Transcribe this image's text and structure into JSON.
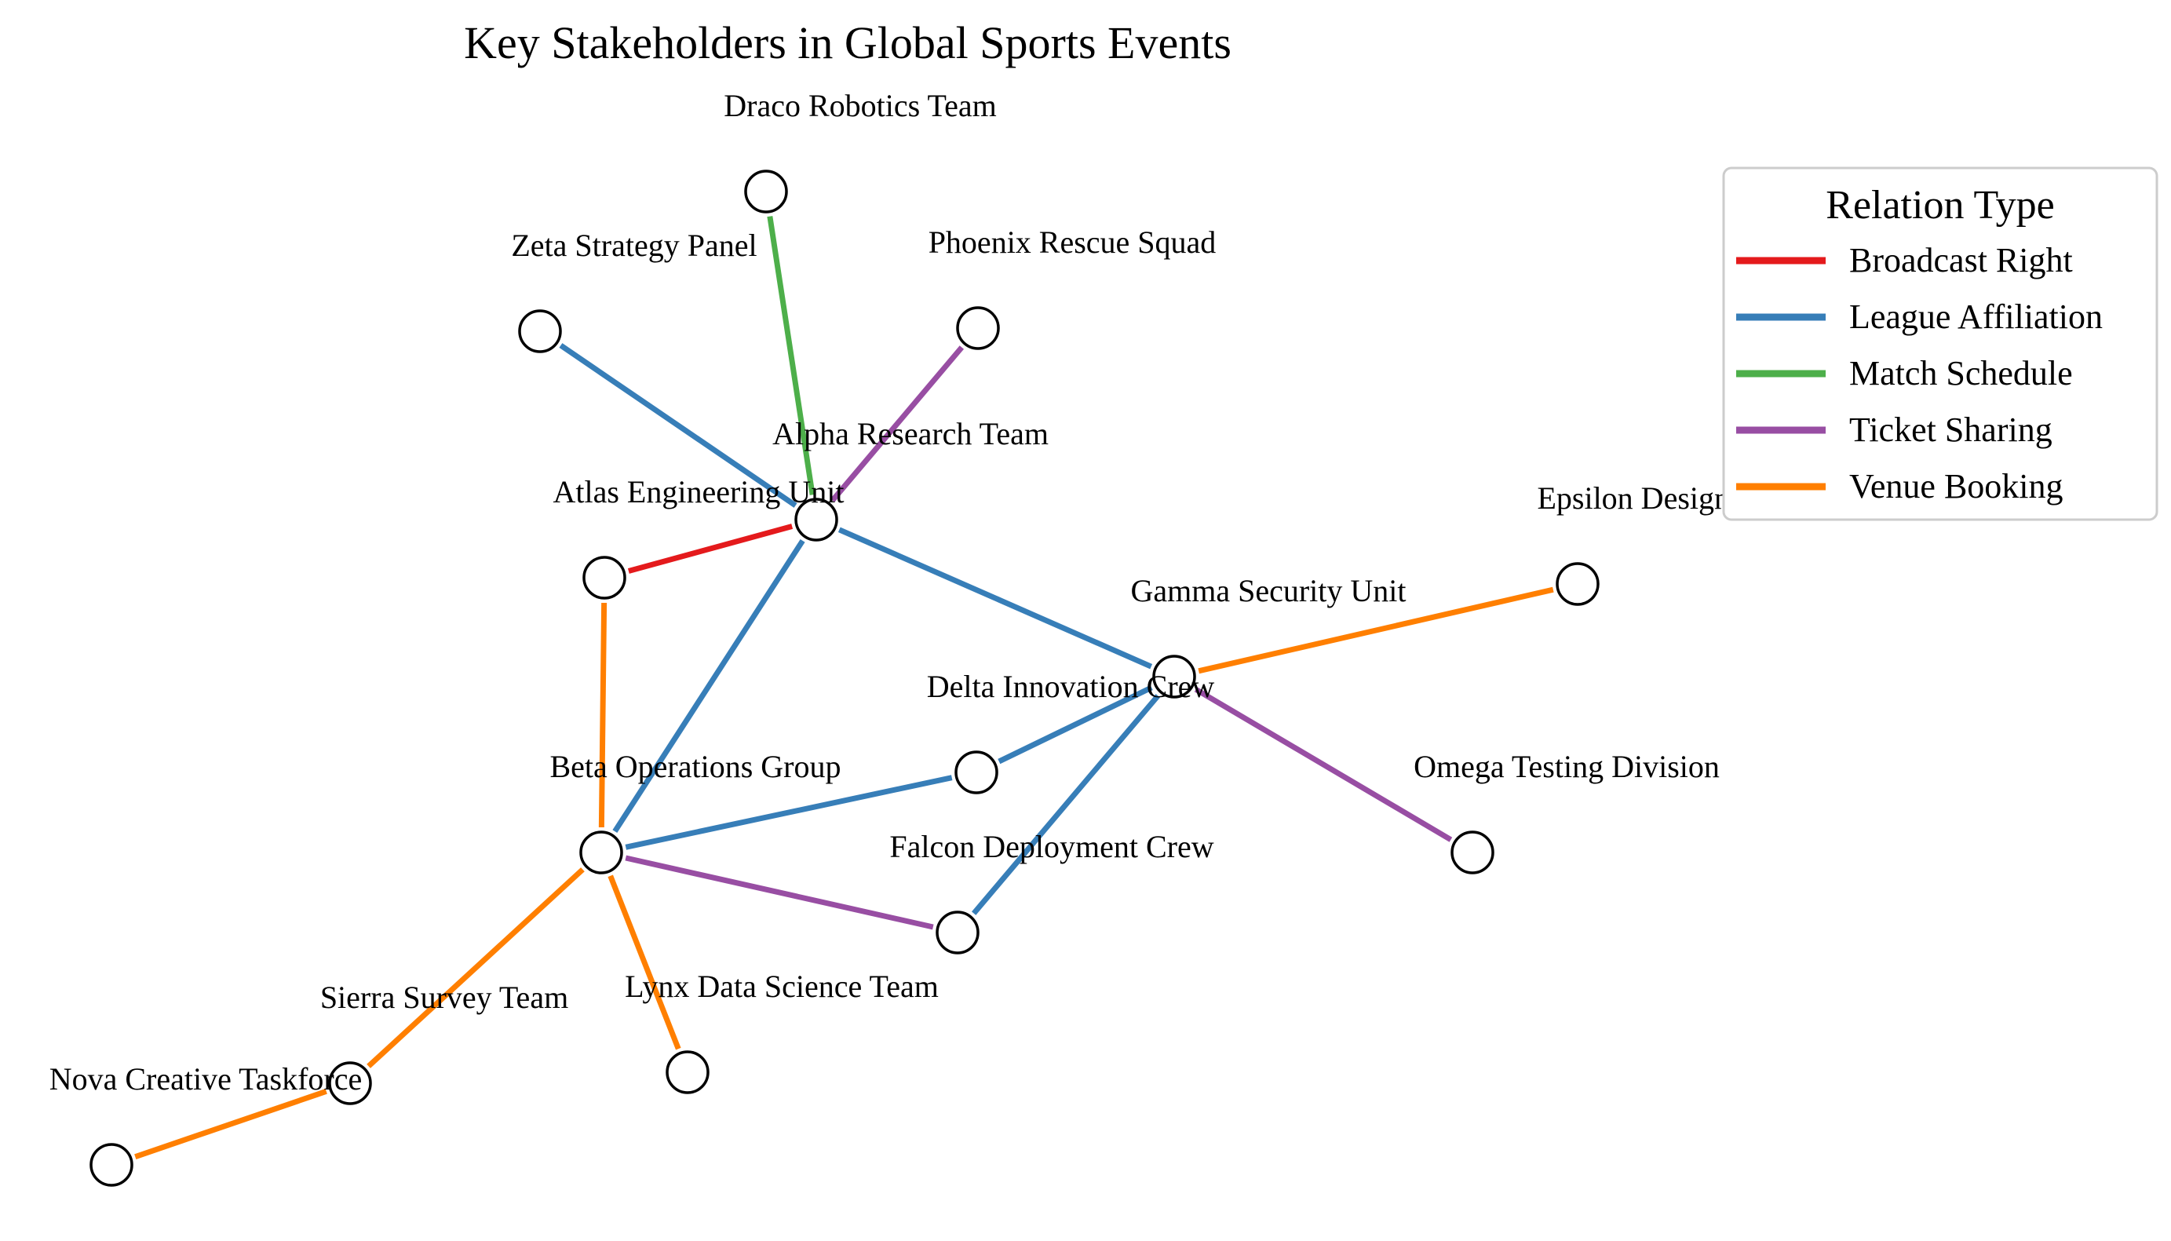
{
  "title": "Key Stakeholders in Global Sports Events",
  "legend": {
    "title": "Relation Type",
    "placement": "top-right",
    "items": [
      {
        "label": "Broadcast Right",
        "color": "#e41a1c"
      },
      {
        "label": "League Affiliation",
        "color": "#377eb8"
      },
      {
        "label": "Match Schedule",
        "color": "#4daf4a"
      },
      {
        "label": "Ticket Sharing",
        "color": "#984ea3"
      },
      {
        "label": "Venue Booking",
        "color": "#ff7f00"
      }
    ]
  },
  "nodes": [
    {
      "id": "alpha",
      "label": "Alpha Research Team"
    },
    {
      "id": "atlas",
      "label": "Atlas Engineering Unit"
    },
    {
      "id": "beta",
      "label": "Beta Operations Group"
    },
    {
      "id": "delta",
      "label": "Delta Innovation Crew"
    },
    {
      "id": "draco",
      "label": "Draco Robotics Team"
    },
    {
      "id": "epsilon",
      "label": "Epsilon Design Team"
    },
    {
      "id": "falcon",
      "label": "Falcon Deployment Crew"
    },
    {
      "id": "gamma",
      "label": "Gamma Security Unit"
    },
    {
      "id": "lynx",
      "label": "Lynx Data Science Team"
    },
    {
      "id": "nova",
      "label": "Nova Creative Taskforce"
    },
    {
      "id": "omega",
      "label": "Omega Testing Division"
    },
    {
      "id": "phoenix",
      "label": "Phoenix Rescue Squad"
    },
    {
      "id": "sierra",
      "label": "Sierra Survey Team"
    },
    {
      "id": "zeta",
      "label": "Zeta Strategy Panel"
    }
  ],
  "edges": [
    {
      "source": "alpha",
      "target": "draco",
      "relation": "Match Schedule"
    },
    {
      "source": "alpha",
      "target": "zeta",
      "relation": "League Affiliation"
    },
    {
      "source": "alpha",
      "target": "phoenix",
      "relation": "Ticket Sharing"
    },
    {
      "source": "alpha",
      "target": "atlas",
      "relation": "Broadcast Right"
    },
    {
      "source": "alpha",
      "target": "gamma",
      "relation": "League Affiliation"
    },
    {
      "source": "alpha",
      "target": "beta",
      "relation": "League Affiliation"
    },
    {
      "source": "atlas",
      "target": "beta",
      "relation": "Venue Booking"
    },
    {
      "source": "gamma",
      "target": "epsilon",
      "relation": "Venue Booking"
    },
    {
      "source": "gamma",
      "target": "delta",
      "relation": "League Affiliation"
    },
    {
      "source": "gamma",
      "target": "falcon",
      "relation": "League Affiliation"
    },
    {
      "source": "gamma",
      "target": "omega",
      "relation": "Ticket Sharing"
    },
    {
      "source": "beta",
      "target": "delta",
      "relation": "League Affiliation"
    },
    {
      "source": "beta",
      "target": "falcon",
      "relation": "Ticket Sharing"
    },
    {
      "source": "beta",
      "target": "lynx",
      "relation": "Venue Booking"
    },
    {
      "source": "beta",
      "target": "sierra",
      "relation": "Venue Booking"
    },
    {
      "source": "sierra",
      "target": "nova",
      "relation": "Venue Booking"
    }
  ]
}
